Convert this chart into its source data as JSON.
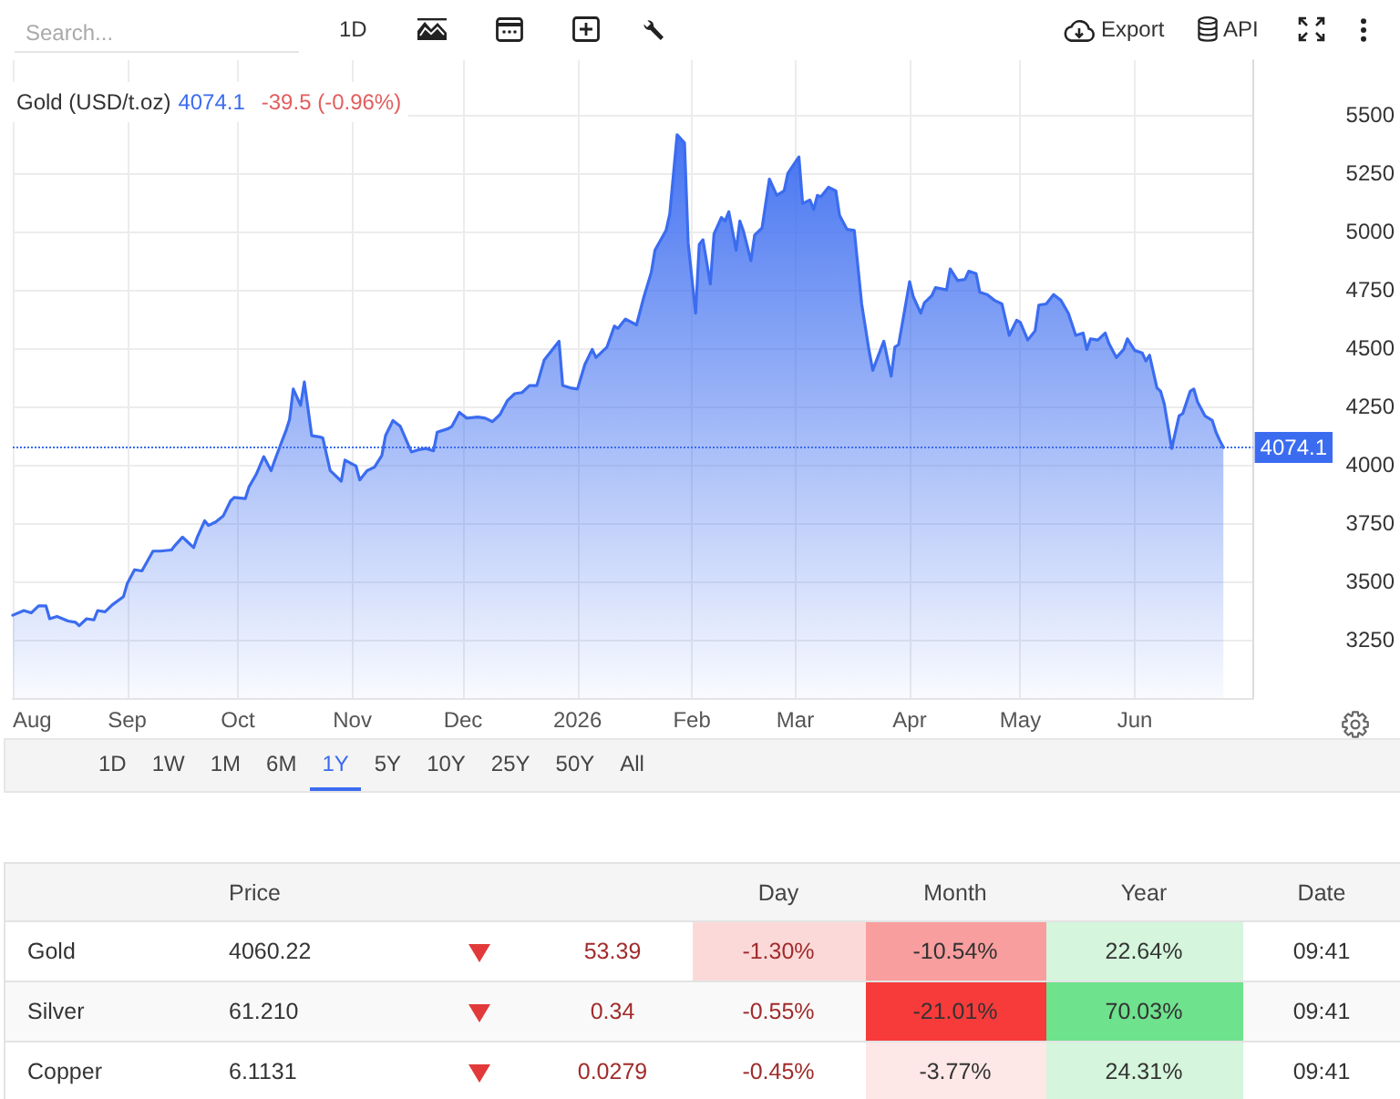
{
  "chart_data": [
    {
      "type": "other",
      "annotations": [
        "Search...",
        "1D",
        "Export",
        "API"
      ]
    },
    {
      "type": "area",
      "title": "Gold (USD/t.oz)",
      "annotations": [
        "4074.1",
        "-39.5 (-0.96%)"
      ],
      "color": "#3b6cf0",
      "x": [
        "2025-08-01",
        "2025-08-04",
        "2025-08-06",
        "2025-08-08",
        "2025-08-10",
        "2025-08-11",
        "2025-08-13",
        "2025-08-16",
        "2025-08-18",
        "2025-08-19",
        "2025-08-21",
        "2025-08-23",
        "2025-08-24",
        "2025-08-26",
        "2025-08-28",
        "2025-08-31",
        "2025-09-01",
        "2025-09-03",
        "2025-09-05",
        "2025-09-08",
        "2025-09-10",
        "2025-09-13",
        "2025-09-14",
        "2025-09-16",
        "2025-09-17",
        "2025-09-19",
        "2025-09-20",
        "2025-09-22",
        "2025-09-23",
        "2025-09-25",
        "2025-09-27",
        "2025-09-29",
        "2025-09-30",
        "2025-10-03",
        "2025-10-04",
        "2025-10-06",
        "2025-10-08",
        "2025-10-10",
        "2025-10-11",
        "2025-10-13",
        "2025-10-14",
        "2025-10-15",
        "2025-10-16",
        "2025-10-18",
        "2025-10-19",
        "2025-10-21",
        "2025-10-23",
        "2025-10-24",
        "2025-10-26",
        "2025-10-29",
        "2025-10-30",
        "2025-11-02",
        "2025-11-03",
        "2025-11-05",
        "2025-11-07",
        "2025-11-09",
        "2025-11-10",
        "2025-11-12",
        "2025-11-14",
        "2025-11-17",
        "2025-11-19",
        "2025-11-21",
        "2025-11-23",
        "2025-11-24",
        "2025-11-27",
        "2025-11-28",
        "2025-11-30",
        "2025-12-02",
        "2025-12-05",
        "2025-12-07",
        "2025-12-09",
        "2025-12-11",
        "2025-12-13",
        "2025-12-15",
        "2025-12-17",
        "2025-12-19",
        "2025-12-21",
        "2025-12-23",
        "2025-12-25",
        "2025-12-27",
        "2025-12-28",
        "2025-12-30",
        "2026-01-01",
        "2026-01-03",
        "2026-01-05",
        "2026-01-06",
        "2026-01-09",
        "2026-01-11",
        "2026-01-12",
        "2026-01-14",
        "2026-01-17",
        "2026-01-19",
        "2026-01-21",
        "2026-01-22",
        "2026-01-25",
        "2026-01-26",
        "2026-01-27",
        "2026-01-28",
        "2026-01-30",
        "2026-01-31",
        "2026-02-02",
        "2026-02-03",
        "2026-02-04",
        "2026-02-06",
        "2026-02-07",
        "2026-02-09",
        "2026-02-10",
        "2026-02-11",
        "2026-02-13",
        "2026-02-14",
        "2026-02-15",
        "2026-02-17",
        "2026-02-18",
        "2026-02-20",
        "2026-02-22",
        "2026-02-24",
        "2026-02-26",
        "2026-02-27",
        "2026-03-02",
        "2026-03-03",
        "2026-03-05",
        "2026-03-06",
        "2026-03-07",
        "2026-03-08",
        "2026-03-10",
        "2026-03-12",
        "2026-03-13",
        "2026-03-15",
        "2026-03-17",
        "2026-03-19",
        "2026-03-21",
        "2026-03-22",
        "2026-03-25",
        "2026-03-27",
        "2026-03-28",
        "2026-03-29",
        "2026-04-01",
        "2026-04-02",
        "2026-04-04",
        "2026-04-05",
        "2026-04-07",
        "2026-04-08",
        "2026-04-11",
        "2026-04-12",
        "2026-04-14",
        "2026-04-16",
        "2026-04-17",
        "2026-04-19",
        "2026-04-20",
        "2026-04-22",
        "2026-04-24",
        "2026-04-26",
        "2026-04-28",
        "2026-04-30",
        "2026-05-01",
        "2026-05-03",
        "2026-05-05",
        "2026-05-06",
        "2026-05-08",
        "2026-05-10",
        "2026-05-12",
        "2026-05-14",
        "2026-05-16",
        "2026-05-18",
        "2026-05-19",
        "2026-05-20",
        "2026-05-22",
        "2026-05-24",
        "2026-05-25",
        "2026-05-27",
        "2026-05-29",
        "2026-05-30",
        "2026-06-01",
        "2026-06-03",
        "2026-06-04",
        "2026-06-05",
        "2026-06-07",
        "2026-06-08",
        "2026-06-09",
        "2026-06-11",
        "2026-06-13",
        "2026-06-14",
        "2026-06-16",
        "2026-06-17",
        "2026-06-18",
        "2026-06-20",
        "2026-06-22",
        "2026-06-23",
        "2026-06-24",
        "2026-06-25"
      ],
      "values": [
        3355,
        3375,
        3365,
        3395,
        3395,
        3340,
        3350,
        3330,
        3325,
        3310,
        3340,
        3335,
        3375,
        3370,
        3400,
        3435,
        3490,
        3550,
        3545,
        3630,
        3630,
        3635,
        3655,
        3690,
        3675,
        3645,
        3690,
        3760,
        3740,
        3755,
        3780,
        3845,
        3860,
        3855,
        3905,
        3960,
        4035,
        3975,
        4020,
        4105,
        4145,
        4195,
        4325,
        4255,
        4355,
        4125,
        4120,
        4115,
        3975,
        3930,
        4020,
        3995,
        3935,
        3975,
        3990,
        4040,
        4125,
        4190,
        4165,
        4055,
        4065,
        4070,
        4060,
        4140,
        4155,
        4165,
        4225,
        4200,
        4205,
        4200,
        4185,
        4215,
        4275,
        4305,
        4310,
        4340,
        4340,
        4450,
        4490,
        4530,
        4340,
        4330,
        4325,
        4430,
        4495,
        4460,
        4505,
        4595,
        4585,
        4625,
        4600,
        4720,
        4825,
        4920,
        5005,
        5075,
        5245,
        5415,
        5380,
        4950,
        4650,
        4945,
        4965,
        4775,
        4990,
        5060,
        5045,
        5085,
        4920,
        5045,
        5000,
        4875,
        4985,
        5015,
        5225,
        5155,
        5175,
        5250,
        5320,
        5120,
        5135,
        5095,
        5155,
        5150,
        5190,
        5175,
        5070,
        5010,
        5005,
        4690,
        4490,
        4405,
        4530,
        4380,
        4505,
        4515,
        4785,
        4720,
        4650,
        4695,
        4725,
        4760,
        4750,
        4840,
        4790,
        4795,
        4830,
        4820,
        4740,
        4730,
        4705,
        4690,
        4555,
        4620,
        4610,
        4535,
        4575,
        4685,
        4690,
        4730,
        4705,
        4650,
        4555,
        4565,
        4495,
        4540,
        4535,
        4565,
        4520,
        4460,
        4495,
        4540,
        4490,
        4480,
        4445,
        4470,
        4330,
        4315,
        4260,
        4070,
        4210,
        4220,
        4315,
        4325,
        4270,
        4210,
        4190,
        4140,
        4105,
        4074.1
      ],
      "xlim": [
        "2025-08-01",
        "2026-07-03"
      ],
      "xticks": [
        {
          "value": "2025-08-01",
          "label": "Aug"
        },
        {
          "value": "2025-09-01",
          "label": "Sep"
        },
        {
          "value": "2025-10-01",
          "label": "Oct"
        },
        {
          "value": "2025-11-01",
          "label": "Nov"
        },
        {
          "value": "2025-12-01",
          "label": "Dec"
        },
        {
          "value": "2026-01-01",
          "label": "2026"
        },
        {
          "value": "2026-02-01",
          "label": "Feb"
        },
        {
          "value": "2026-03-01",
          "label": "Mar"
        },
        {
          "value": "2026-04-01",
          "label": "Apr"
        },
        {
          "value": "2026-05-01",
          "label": "May"
        },
        {
          "value": "2026-06-01",
          "label": "Jun"
        }
      ],
      "ylim": [
        3000,
        5735
      ],
      "yticks": [
        3250,
        3500,
        3750,
        4000,
        4250,
        4500,
        4750,
        5000,
        5250,
        5500
      ],
      "grid": true,
      "ref_lines": [
        {
          "axis": "y",
          "value": 4074.1,
          "label": "4074.1",
          "color": "#3b6cf0",
          "line_style": "dotted"
        }
      ]
    },
    {
      "type": "other",
      "categories": [
        "1D",
        "1W",
        "1M",
        "6M",
        "1Y",
        "5Y",
        "10Y",
        "25Y",
        "50Y",
        "All"
      ],
      "colors": [
        null,
        null,
        null,
        null,
        "#3b6cf0",
        null,
        null,
        null,
        null,
        null
      ]
    },
    {
      "type": "other",
      "categories": [
        "Price",
        null,
        "Day",
        "Month",
        "Year",
        "Date"
      ],
      "y_categories": [
        "Gold",
        "Silver",
        "Copper"
      ],
      "cell_labels": [
        [
          "4060.22",
          "53.39",
          "-1.30%",
          "-10.54%",
          "22.64%",
          "09:41"
        ],
        [
          "61.210",
          "0.34",
          "-0.55%",
          "-21.01%",
          "70.03%",
          "09:41"
        ],
        [
          "6.1131",
          "0.0279",
          "-0.45%",
          "-3.77%",
          "24.31%",
          "09:41"
        ]
      ],
      "colors": [
        [
          null,
          null,
          "#fcd9d9",
          "#f89e9e",
          "#d5f5dc",
          null
        ],
        [
          null,
          null,
          null,
          "#f73b3b",
          "#6ee28d",
          null
        ],
        [
          null,
          null,
          null,
          "#fde7e7",
          "#d5f5dc",
          null
        ]
      ]
    }
  ]
}
